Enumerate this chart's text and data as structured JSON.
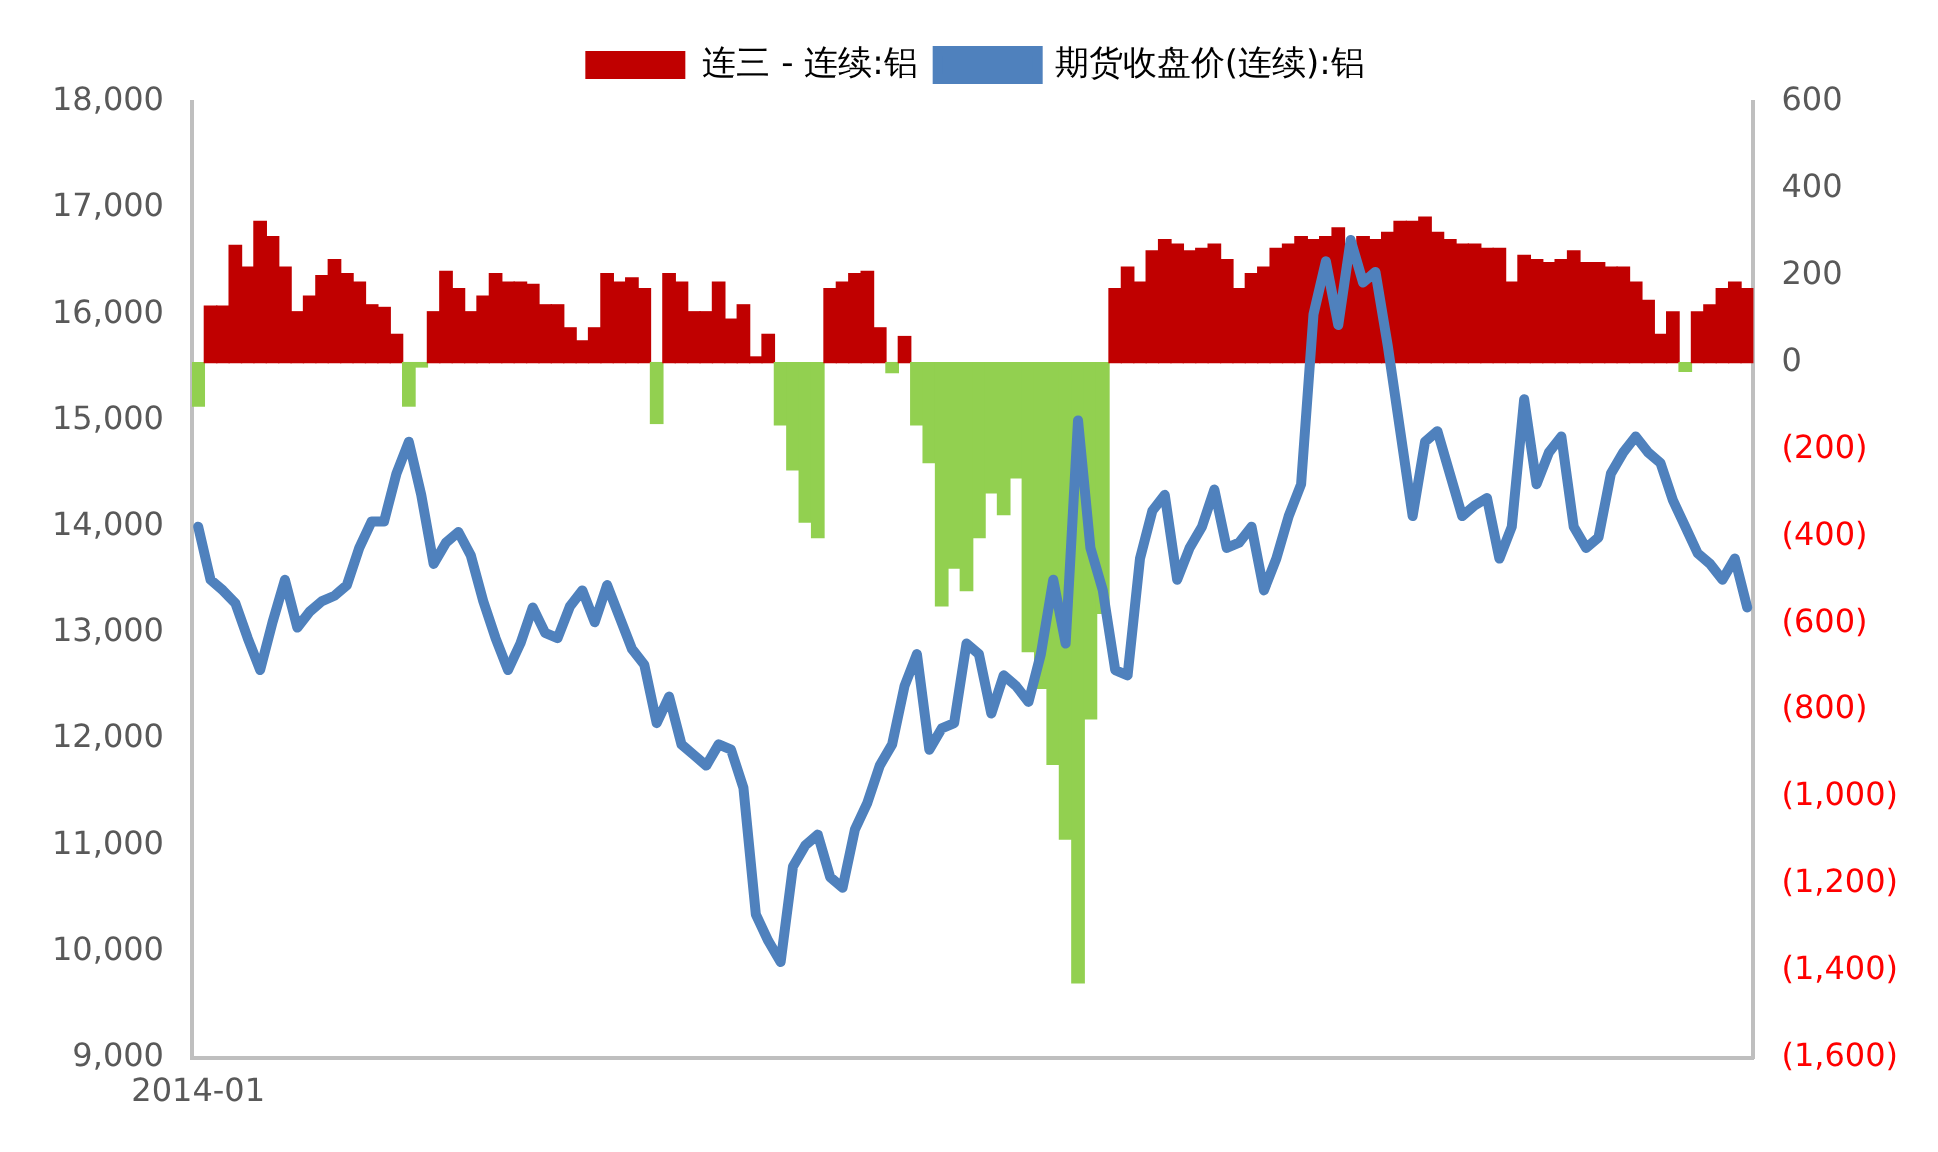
{
  "chart_data": {
    "type": "bar",
    "legend": "top",
    "grid": false,
    "marker": "none",
    "categories": [
      "2014-01",
      null,
      null,
      null,
      null,
      null,
      null,
      null,
      null,
      null,
      null,
      null,
      null,
      null,
      null,
      null,
      null,
      null,
      null,
      null,
      null,
      null,
      null,
      null,
      null,
      null,
      null,
      null,
      null,
      null,
      null,
      null,
      null,
      null,
      null,
      null,
      null,
      null,
      null,
      null,
      null,
      null,
      null,
      null,
      null,
      null,
      null,
      null,
      null,
      null,
      null,
      null,
      null,
      null,
      null,
      null,
      null,
      null,
      null,
      null,
      null,
      null,
      null,
      null,
      null,
      null,
      null,
      null,
      null,
      null,
      null,
      null,
      null,
      null,
      null,
      null,
      null,
      null,
      null,
      null,
      null,
      null,
      null,
      null,
      null,
      null,
      null,
      null,
      null,
      null,
      null,
      null,
      null,
      null,
      null,
      null,
      null,
      null,
      null,
      null,
      null,
      null,
      null,
      null,
      null,
      null,
      null,
      null,
      null,
      null,
      null,
      null,
      null,
      null,
      null,
      null,
      null,
      null,
      null,
      null,
      null,
      null,
      null,
      null,
      null,
      null
    ],
    "ylim": [
      9000,
      18000
    ],
    "yticks": [
      {
        "value": 9000,
        "label": "9,000"
      },
      {
        "value": 10000,
        "label": "10,000"
      },
      {
        "value": 11000,
        "label": "11,000"
      },
      {
        "value": 12000,
        "label": "12,000"
      },
      {
        "value": 13000,
        "label": "13,000"
      },
      {
        "value": 14000,
        "label": "14,000"
      },
      {
        "value": 15000,
        "label": "15,000"
      },
      {
        "value": 16000,
        "label": "16,000"
      },
      {
        "value": 17000,
        "label": "17,000"
      },
      {
        "value": 18000,
        "label": "18,000"
      }
    ],
    "y2lim": [
      -1600,
      600
    ],
    "y2ticks": [
      {
        "value": -1600,
        "label": "(1,600)"
      },
      {
        "value": -1400,
        "label": "(1,400)"
      },
      {
        "value": -1200,
        "label": "(1,200)"
      },
      {
        "value": -1000,
        "label": "(1,000)"
      },
      {
        "value": -800,
        "label": "(800)"
      },
      {
        "value": -600,
        "label": "(600)"
      },
      {
        "value": -400,
        "label": "(400)"
      },
      {
        "value": -200,
        "label": "(200)"
      },
      0,
      200,
      400,
      600
    ],
    "series": [
      {
        "name": "连三 - 连续:铝",
        "axis": "y2",
        "color": "#c00000",
        "values": [
          -100,
          130,
          130,
          270,
          220,
          325,
          290,
          220,
          117,
          153,
          200,
          237,
          205,
          185,
          133,
          127,
          65,
          -100,
          -10,
          117,
          210,
          170,
          117,
          153,
          205,
          185,
          185,
          180,
          133,
          133,
          80,
          50,
          80,
          205,
          185,
          195,
          170,
          -140,
          205,
          185,
          117,
          117,
          185,
          100,
          133,
          13,
          65,
          -143,
          -247,
          -367,
          -403,
          170,
          185,
          205,
          210,
          80,
          -23,
          60,
          -143,
          -230,
          -560,
          -473,
          -525,
          -403,
          -300,
          -350,
          -265,
          -665,
          -750,
          -925,
          -1097,
          -1428,
          -820,
          -577,
          170,
          220,
          185,
          257,
          283,
          273,
          257,
          263,
          273,
          237,
          170,
          205,
          220,
          263,
          273,
          290,
          283,
          290,
          310,
          273,
          290,
          283,
          300,
          325,
          325,
          335,
          300,
          283,
          273,
          273,
          263,
          263,
          185,
          247,
          237,
          230,
          237,
          257,
          230,
          230,
          220,
          220,
          185,
          143,
          65,
          117,
          -20,
          117,
          133,
          170,
          185,
          170
        ],
        "colors": [
          "#92d050",
          "#c00000",
          "#c00000",
          "#c00000",
          "#c00000",
          "#c00000",
          "#c00000",
          "#c00000",
          "#c00000",
          "#c00000",
          "#c00000",
          "#c00000",
          "#c00000",
          "#c00000",
          "#c00000",
          "#c00000",
          "#c00000",
          "#92d050",
          "#92d050",
          "#c00000",
          "#c00000",
          "#c00000",
          "#c00000",
          "#c00000",
          "#c00000",
          "#c00000",
          "#c00000",
          "#c00000",
          "#c00000",
          "#c00000",
          "#c00000",
          "#c00000",
          "#c00000",
          "#c00000",
          "#c00000",
          "#c00000",
          "#c00000",
          "#92d050",
          "#c00000",
          "#c00000",
          "#c00000",
          "#c00000",
          "#c00000",
          "#c00000",
          "#c00000",
          "#c00000",
          "#c00000",
          "#92d050",
          "#92d050",
          "#92d050",
          "#92d050",
          "#c00000",
          "#c00000",
          "#c00000",
          "#c00000",
          "#c00000",
          "#92d050",
          "#c00000",
          "#92d050",
          "#92d050",
          "#92d050",
          "#92d050",
          "#92d050",
          "#92d050",
          "#92d050",
          "#92d050",
          "#92d050",
          "#92d050",
          "#92d050",
          "#92d050",
          "#92d050",
          "#92d050",
          "#92d050",
          "#92d050",
          "#c00000",
          "#c00000",
          "#c00000",
          "#c00000",
          "#c00000",
          "#c00000",
          "#c00000",
          "#c00000",
          "#c00000",
          "#c00000",
          "#c00000",
          "#c00000",
          "#c00000",
          "#c00000",
          "#c00000",
          "#c00000",
          "#c00000",
          "#c00000",
          "#c00000",
          "#c00000",
          "#c00000",
          "#c00000",
          "#c00000",
          "#c00000",
          "#c00000",
          "#c00000",
          "#c00000",
          "#c00000",
          "#c00000",
          "#c00000",
          "#c00000",
          "#c00000",
          "#c00000",
          "#c00000",
          "#c00000",
          "#c00000",
          "#c00000",
          "#c00000",
          "#c00000",
          "#c00000",
          "#c00000",
          "#c00000",
          "#c00000",
          "#c00000",
          "#c00000",
          "#c00000",
          "#92d050",
          "#c00000",
          "#c00000",
          "#c00000",
          "#c00000",
          "#c00000"
        ]
      },
      {
        "name": "期货收盘价(连续):铝",
        "type": "line",
        "axis": "y",
        "color": "#4f81bd",
        "values": [
          14000,
          13500,
          13400,
          13280,
          12950,
          12650,
          13100,
          13500,
          13050,
          13200,
          13300,
          13350,
          13450,
          13800,
          14050,
          14050,
          14500,
          14800,
          14300,
          13650,
          13850,
          13950,
          13730,
          13300,
          12950,
          12650,
          12900,
          13240,
          13000,
          12950,
          13250,
          13400,
          13100,
          13450,
          13150,
          12850,
          12700,
          12150,
          12400,
          11950,
          11850,
          11750,
          11950,
          11900,
          11540,
          10350,
          10100,
          9900,
          10800,
          11000,
          11100,
          10700,
          10600,
          11150,
          11400,
          11750,
          11950,
          12500,
          12800,
          11900,
          12100,
          12150,
          12900,
          12800,
          12240,
          12600,
          12500,
          12350,
          12800,
          13500,
          12900,
          15000,
          13800,
          13400,
          12650,
          12600,
          13700,
          14150,
          14300,
          13500,
          13800,
          14000,
          14350,
          13800,
          13850,
          14000,
          13400,
          13700,
          14100,
          14400,
          16000,
          16500,
          15900,
          16700,
          16300,
          16400,
          15700,
          14900,
          14100,
          14800,
          14900,
          14500,
          14100,
          14200,
          14270,
          13700,
          14000,
          15200,
          14400,
          14700,
          14850,
          14000,
          13800,
          13900,
          14500,
          14700,
          14850,
          14700,
          14600,
          14250,
          14000,
          13750,
          13650,
          13500,
          13700,
          13240
        ]
      }
    ]
  }
}
